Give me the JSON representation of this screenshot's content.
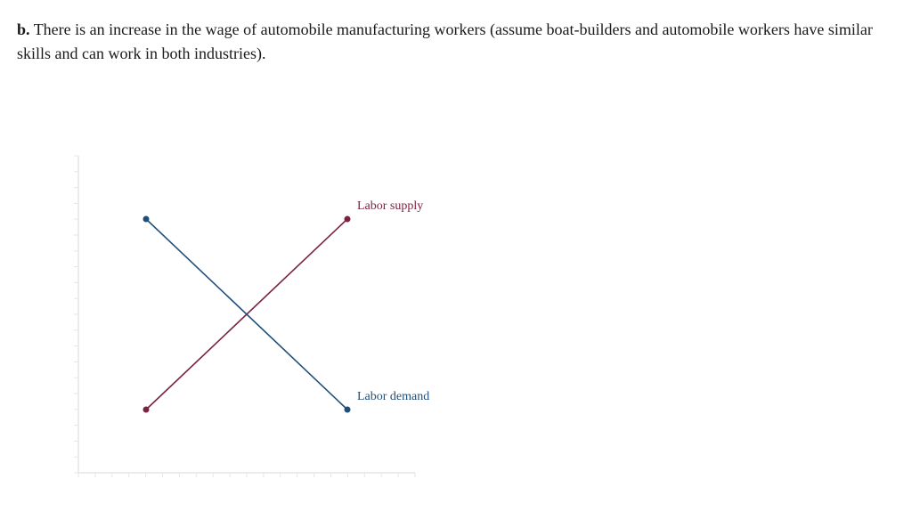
{
  "question": {
    "prefix": "b.",
    "text": " There is an increase in the wage of automobile manufacturing workers (assume boat-builders and automobile workers have similar skills and can work in both industries)."
  },
  "colors": {
    "supply": "#7a2242",
    "demand": "#1f4e79",
    "axis": "#d9d9d9",
    "grid_tick": "#e6e6e6"
  },
  "chart_data": {
    "type": "line",
    "title": "",
    "xlabel": "",
    "ylabel": "",
    "xlim": [
      0,
      10
    ],
    "ylim": [
      0,
      10
    ],
    "grid": false,
    "series": [
      {
        "name": "Labor supply",
        "color": "#7a2242",
        "points": [
          [
            2,
            2
          ],
          [
            8,
            8
          ]
        ]
      },
      {
        "name": "Labor demand",
        "color": "#1f4e79",
        "points": [
          [
            2,
            8
          ],
          [
            8,
            2
          ]
        ]
      }
    ]
  }
}
